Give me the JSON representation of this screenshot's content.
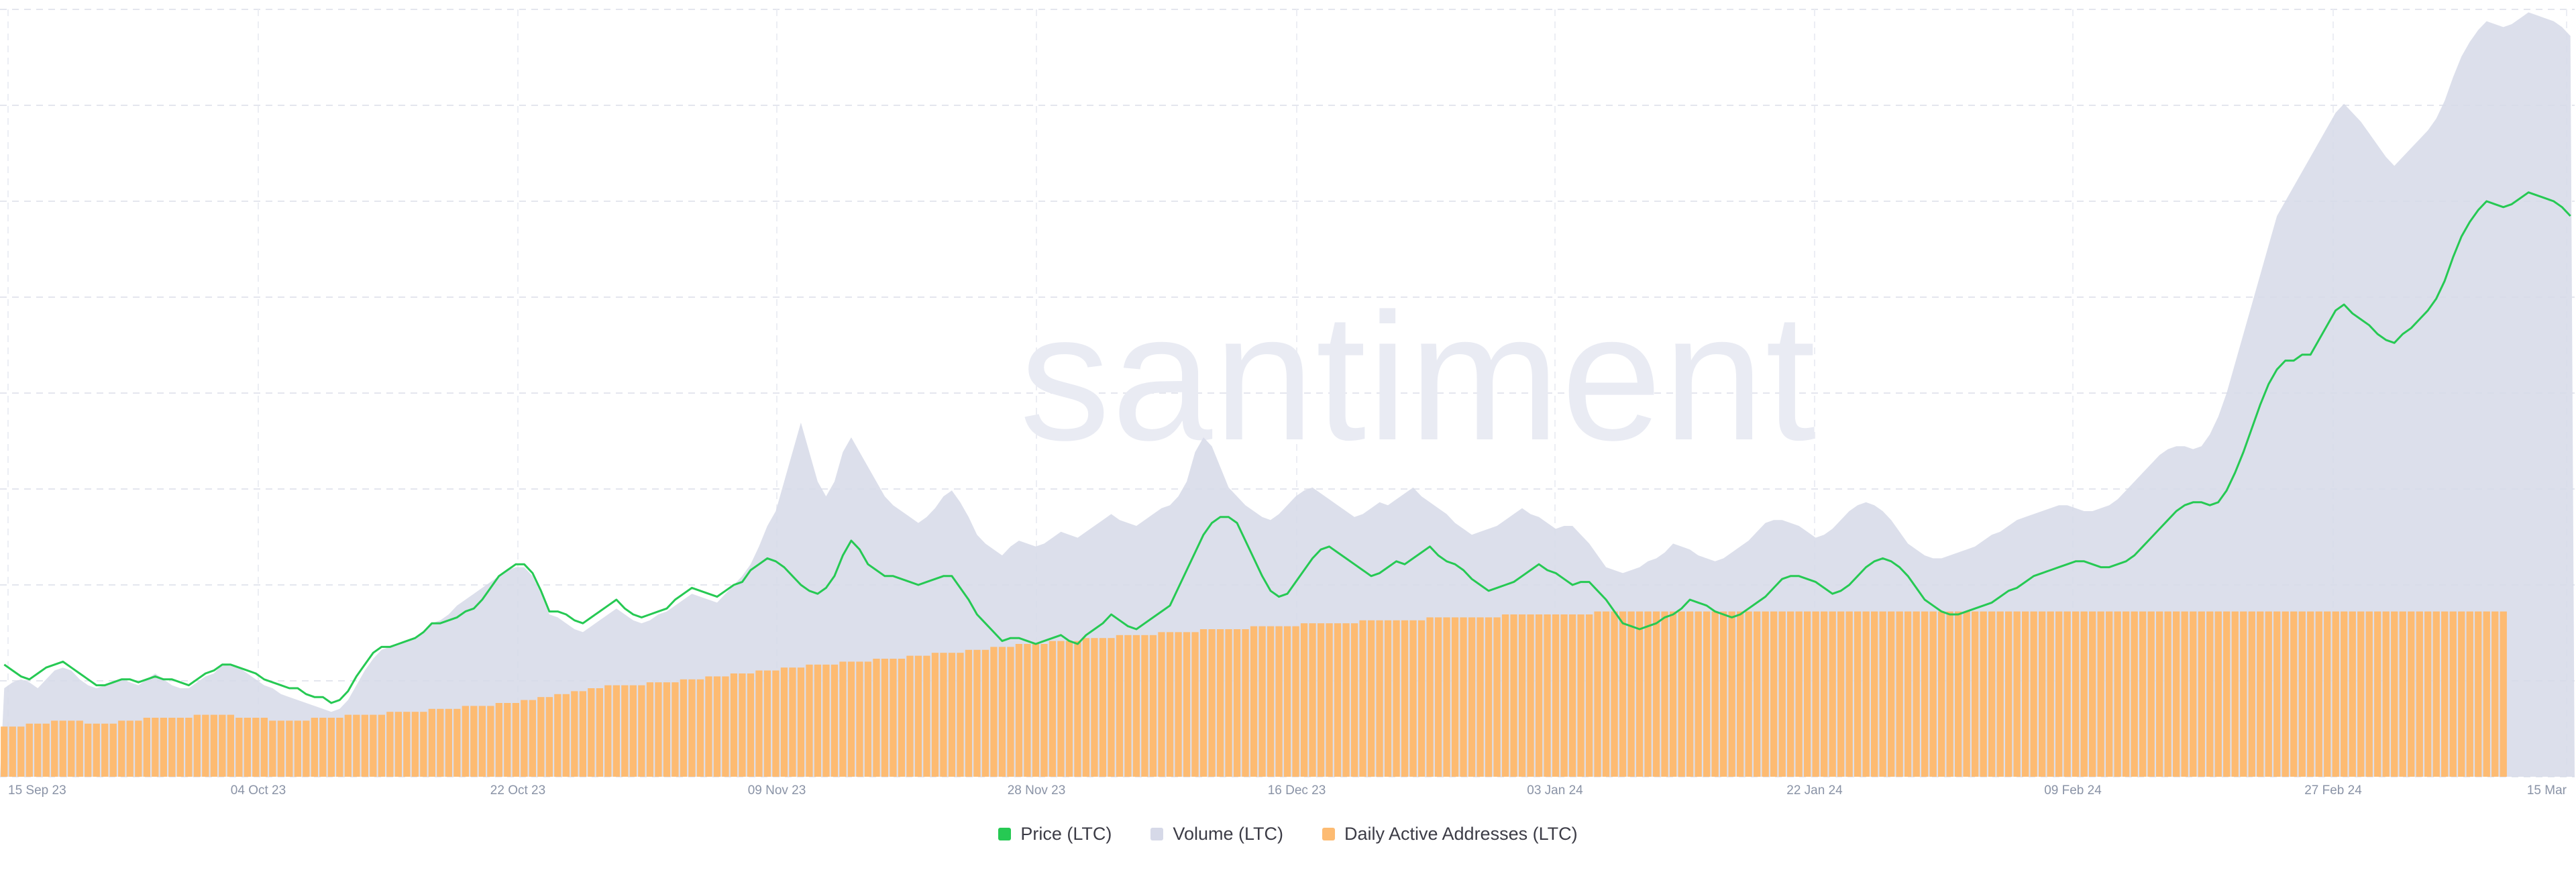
{
  "chart_data": {
    "type": "bar",
    "title": "",
    "watermark": "santiment",
    "x_ticks": [
      "15 Sep 23",
      "04 Oct 23",
      "22 Oct 23",
      "09 Nov 23",
      "28 Nov 23",
      "16 Dec 23",
      "03 Jan 24",
      "22 Jan 24",
      "09 Feb 24",
      "27 Feb 24",
      "15 Mar"
    ],
    "x_range": [
      "2023-09-15",
      "2024-03-16"
    ],
    "grid": "dashed, light gray",
    "legend_placement": "bottom-center",
    "y_axis_labels": "none",
    "series": [
      {
        "name": "Price (LTC)",
        "render": "line",
        "color": "#26c953",
        "values": [
          38,
          36,
          34,
          33,
          35,
          37,
          38,
          39,
          37,
          35,
          33,
          31,
          31,
          32,
          33,
          33,
          32,
          33,
          34,
          33,
          33,
          32,
          31,
          33,
          35,
          36,
          38,
          38,
          37,
          36,
          35,
          33,
          32,
          31,
          30,
          30,
          28,
          27,
          27,
          25,
          26,
          29,
          34,
          38,
          42,
          44,
          44,
          45,
          46,
          47,
          49,
          52,
          52,
          53,
          54,
          56,
          57,
          60,
          64,
          68,
          70,
          72,
          72,
          69,
          63,
          56,
          56,
          55,
          53,
          52,
          54,
          56,
          58,
          60,
          57,
          55,
          54,
          55,
          56,
          57,
          60,
          62,
          64,
          63,
          62,
          61,
          63,
          65,
          66,
          70,
          72,
          74,
          73,
          71,
          68,
          65,
          63,
          62,
          64,
          68,
          75,
          80,
          77,
          72,
          70,
          68,
          68,
          67,
          66,
          65,
          66,
          67,
          68,
          68,
          64,
          60,
          55,
          52,
          49,
          46,
          47,
          47,
          46,
          45,
          46,
          47,
          48,
          46,
          45,
          48,
          50,
          52,
          55,
          53,
          51,
          50,
          52,
          54,
          56,
          58,
          64,
          70,
          76,
          82,
          86,
          88,
          88,
          86,
          80,
          74,
          68,
          63,
          61,
          62,
          66,
          70,
          74,
          77,
          78,
          76,
          74,
          72,
          70,
          68,
          69,
          71,
          73,
          72,
          74,
          76,
          78,
          75,
          73,
          72,
          70,
          67,
          65,
          63,
          64,
          65,
          66,
          68,
          70,
          72,
          70,
          69,
          67,
          65,
          66,
          66,
          63,
          60,
          56,
          52,
          51,
          50,
          51,
          52,
          54,
          55,
          57,
          60,
          59,
          58,
          56,
          55,
          54,
          55,
          57,
          59,
          61,
          64,
          67,
          68,
          68,
          67,
          66,
          64,
          62,
          63,
          65,
          68,
          71,
          73,
          74,
          73,
          71,
          68,
          64,
          60,
          58,
          56,
          55,
          55,
          56,
          57,
          58,
          59,
          61,
          63,
          64,
          66,
          68,
          69,
          70,
          71,
          72,
          73,
          73,
          72,
          71,
          71,
          72,
          73,
          75,
          78,
          81,
          84,
          87,
          90,
          92,
          93,
          93,
          92,
          93,
          97,
          103,
          110,
          118,
          126,
          133,
          138,
          141,
          141,
          143,
          143,
          148,
          153,
          158,
          160,
          157,
          155,
          153,
          150,
          148,
          147,
          150,
          152,
          155,
          158,
          162,
          168,
          176,
          183,
          188,
          192,
          195,
          194,
          193,
          194,
          196,
          198,
          197,
          196,
          195,
          193,
          190
        ]
      },
      {
        "name": "Volume (LTC)",
        "render": "area",
        "color": "#d6d9e8",
        "values": [
          30,
          32,
          33,
          32,
          30,
          33,
          36,
          37,
          36,
          33,
          31,
          30,
          31,
          32,
          33,
          32,
          31,
          33,
          35,
          33,
          31,
          30,
          30,
          32,
          34,
          35,
          38,
          38,
          37,
          35,
          33,
          31,
          30,
          28,
          27,
          26,
          25,
          24,
          23,
          22,
          23,
          26,
          31,
          36,
          40,
          43,
          44,
          45,
          46,
          47,
          49,
          52,
          53,
          55,
          58,
          60,
          62,
          64,
          66,
          68,
          70,
          71,
          71,
          68,
          62,
          55,
          54,
          52,
          50,
          49,
          51,
          53,
          55,
          57,
          55,
          53,
          52,
          53,
          55,
          56,
          58,
          60,
          62,
          61,
          60,
          59,
          62,
          65,
          68,
          72,
          78,
          85,
          90,
          100,
          110,
          120,
          110,
          100,
          95,
          100,
          110,
          115,
          110,
          105,
          100,
          95,
          92,
          90,
          88,
          86,
          88,
          91,
          95,
          97,
          93,
          88,
          82,
          79,
          77,
          75,
          78,
          80,
          79,
          78,
          79,
          81,
          83,
          82,
          81,
          83,
          85,
          87,
          89,
          87,
          86,
          85,
          87,
          89,
          91,
          92,
          95,
          100,
          110,
          115,
          112,
          105,
          98,
          95,
          92,
          90,
          88,
          87,
          89,
          92,
          95,
          97,
          98,
          96,
          94,
          92,
          90,
          88,
          89,
          91,
          93,
          92,
          94,
          96,
          98,
          95,
          93,
          91,
          89,
          86,
          84,
          82,
          83,
          84,
          85,
          87,
          89,
          91,
          89,
          88,
          86,
          84,
          85,
          85,
          82,
          79,
          75,
          71,
          70,
          69,
          70,
          71,
          73,
          74,
          76,
          79,
          78,
          77,
          75,
          74,
          73,
          74,
          76,
          78,
          80,
          83,
          86,
          87,
          87,
          86,
          85,
          83,
          81,
          82,
          84,
          87,
          90,
          92,
          93,
          92,
          90,
          87,
          83,
          79,
          77,
          75,
          74,
          74,
          75,
          76,
          77,
          78,
          80,
          82,
          83,
          85,
          87,
          88,
          89,
          90,
          91,
          92,
          92,
          91,
          90,
          90,
          91,
          92,
          94,
          97,
          100,
          103,
          106,
          109,
          111,
          112,
          112,
          111,
          112,
          116,
          122,
          130,
          140,
          150,
          160,
          170,
          180,
          190,
          195,
          200,
          205,
          210,
          215,
          220,
          225,
          228,
          225,
          222,
          218,
          214,
          210,
          207,
          210,
          213,
          216,
          219,
          223,
          229,
          237,
          244,
          249,
          253,
          256,
          255,
          254,
          255,
          257,
          259,
          258,
          257,
          256,
          254,
          251
        ]
      },
      {
        "name": "Daily Active Addresses (LTC)",
        "render": "bar",
        "color": "#fdbb72",
        "values": [
          17,
          17,
          17,
          18,
          18,
          18,
          19,
          19,
          19,
          19,
          18,
          18,
          18,
          18,
          19,
          19,
          19,
          20,
          20,
          20,
          20,
          20,
          20,
          21,
          21,
          21,
          21,
          21,
          20,
          20,
          20,
          20,
          19,
          19,
          19,
          19,
          19,
          20,
          20,
          20,
          20,
          21,
          21,
          21,
          21,
          21,
          22,
          22,
          22,
          22,
          22,
          23,
          23,
          23,
          23,
          24,
          24,
          24,
          24,
          25,
          25,
          25,
          26,
          26,
          27,
          27,
          28,
          28,
          29,
          29,
          30,
          30,
          31,
          31,
          31,
          31,
          31,
          32,
          32,
          32,
          32,
          33,
          33,
          33,
          34,
          34,
          34,
          35,
          35,
          35,
          36,
          36,
          36,
          37,
          37,
          37,
          38,
          38,
          38,
          38,
          39,
          39,
          39,
          39,
          40,
          40,
          40,
          40,
          41,
          41,
          41,
          42,
          42,
          42,
          42,
          43,
          43,
          43,
          44,
          44,
          44,
          45,
          45,
          45,
          45,
          46,
          46,
          46,
          46,
          47,
          47,
          47,
          47,
          48,
          48,
          48,
          48,
          48,
          49,
          49,
          49,
          49,
          49,
          50,
          50,
          50,
          50,
          50,
          50,
          51,
          51,
          51,
          51,
          51,
          51,
          52,
          52,
          52,
          52,
          52,
          52,
          52,
          53,
          53,
          53,
          53,
          53,
          53,
          53,
          53,
          54,
          54,
          54,
          54,
          54,
          54,
          54,
          54,
          54,
          55,
          55,
          55,
          55,
          55,
          55,
          55,
          55,
          55,
          55,
          55,
          56,
          56,
          56,
          56,
          56,
          56,
          56,
          56,
          56,
          56,
          56,
          56,
          56,
          56,
          56,
          56,
          56,
          56,
          56,
          56,
          56,
          56,
          56,
          56,
          56,
          56,
          56,
          56,
          56,
          56,
          56,
          56,
          56,
          56,
          56,
          56,
          56,
          56,
          56,
          56,
          56,
          56,
          56,
          56,
          56,
          56,
          56,
          56,
          56,
          56,
          56,
          56,
          56,
          56,
          56,
          56,
          56,
          56,
          56,
          56,
          56,
          56,
          56,
          56,
          56,
          56,
          56,
          56,
          56,
          56,
          56,
          56,
          56,
          56,
          56,
          56,
          56,
          56,
          56,
          56,
          56,
          56,
          56,
          56,
          56,
          56,
          56,
          56,
          56,
          56,
          56,
          56,
          56,
          56,
          56,
          56,
          56,
          56,
          56,
          56,
          56,
          56,
          56,
          56,
          56,
          56,
          56,
          56,
          56
        ]
      }
    ]
  },
  "legend": [
    {
      "label": "Price (LTC)",
      "color": "#26c953"
    },
    {
      "label": "Volume (LTC)",
      "color": "#d6d9e8"
    },
    {
      "label": "Daily Active Addresses (LTC)",
      "color": "#fdbb72"
    }
  ]
}
